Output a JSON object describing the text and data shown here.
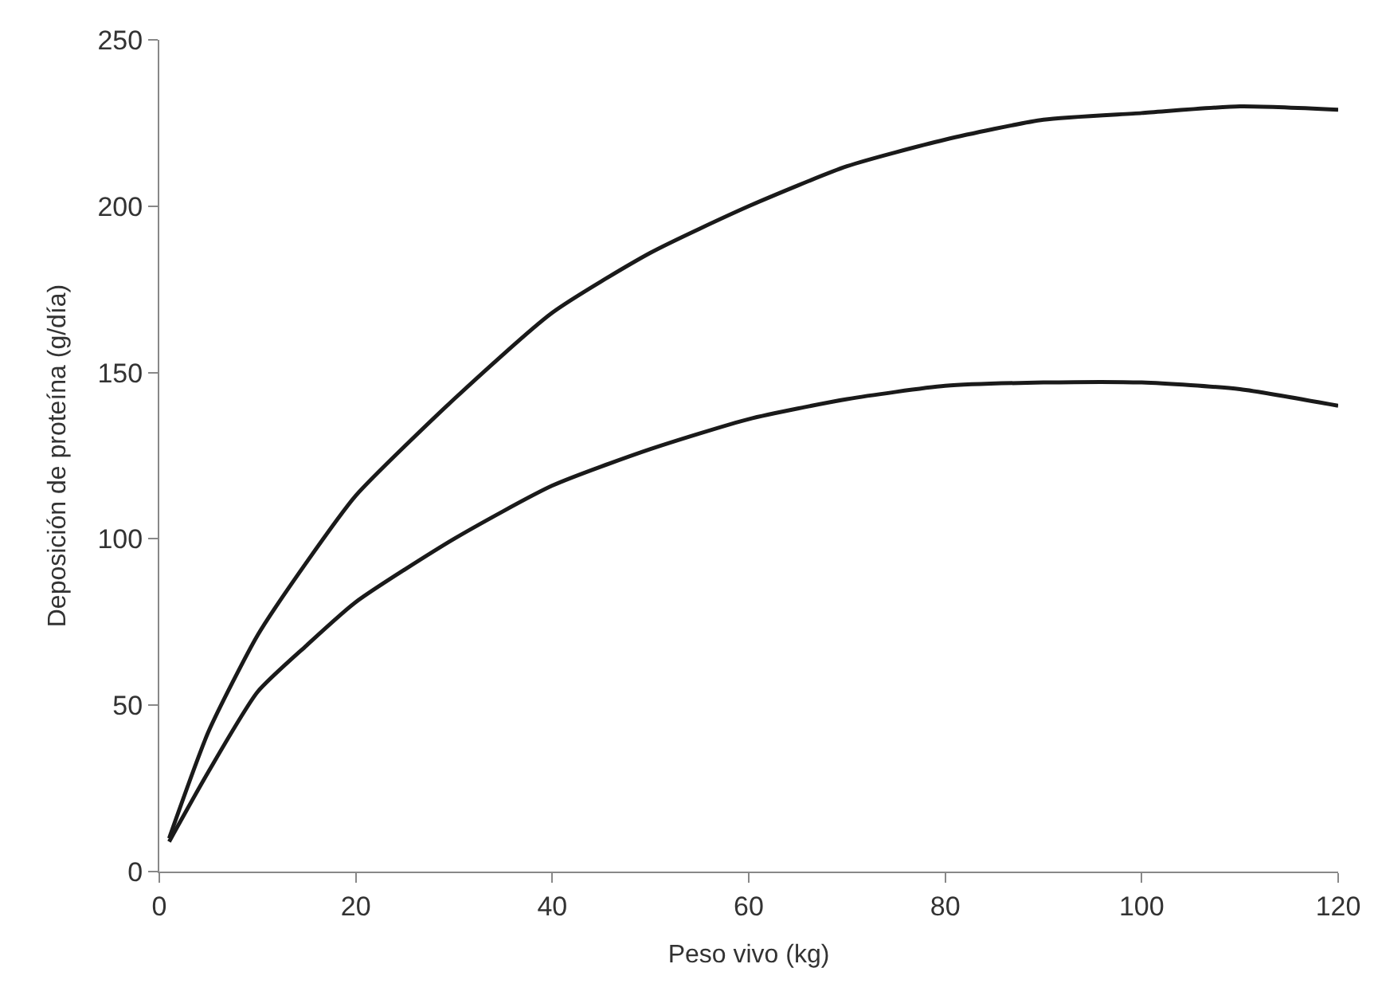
{
  "chart_data": {
    "type": "line",
    "xlabel": "Peso vivo (kg)",
    "ylabel": "Deposición de proteína (g/día)",
    "x": [
      1,
      5,
      10,
      15,
      20,
      30,
      40,
      50,
      60,
      70,
      80,
      90,
      100,
      110,
      120
    ],
    "series": [
      {
        "color": "#1a1a1a",
        "values": [
          10,
          42,
          71,
          93,
          113,
          142,
          168,
          186,
          200,
          212,
          220,
          226,
          228,
          230,
          229
        ]
      },
      {
        "color": "#1a1a1a",
        "values": [
          9,
          30,
          54,
          68,
          81,
          100,
          116,
          127,
          136,
          142,
          146,
          147,
          147,
          145,
          140
        ]
      }
    ],
    "xlim": [
      0,
      120
    ],
    "xticks": [
      0,
      20,
      40,
      60,
      80,
      100,
      120
    ],
    "ylim": [
      0,
      250
    ],
    "yticks": [
      0,
      50,
      100,
      150,
      200,
      250
    ],
    "marker": "none",
    "line_style": "solid"
  }
}
